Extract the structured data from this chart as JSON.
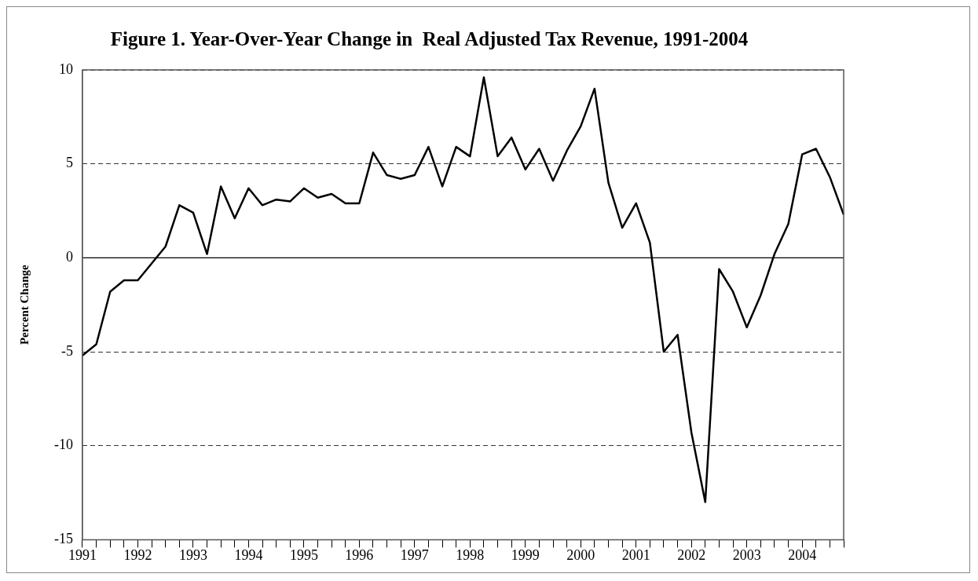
{
  "chart_data": {
    "type": "line",
    "title": "Figure 1. Year-Over-Year Change in  Real Adjusted Tax Revenue, 1991-2004",
    "ylabel": "Percent Change",
    "categories": [
      "1991",
      null,
      null,
      null,
      "1992",
      null,
      null,
      null,
      "1993",
      null,
      null,
      null,
      "1994",
      null,
      null,
      null,
      "1995",
      null,
      null,
      null,
      "1996",
      null,
      null,
      null,
      "1997",
      null,
      null,
      null,
      "1998",
      null,
      null,
      null,
      "1999",
      null,
      null,
      null,
      "2000",
      null,
      null,
      null,
      "2001",
      null,
      null,
      null,
      "2002",
      null,
      null,
      null,
      "2003",
      null,
      null,
      null,
      "2004",
      null,
      null,
      null
    ],
    "series": [
      {
        "color": "#000000",
        "values": [
          -5.2,
          -4.6,
          -1.8,
          -1.2,
          -1.2,
          -0.3,
          0.6,
          2.8,
          2.4,
          0.2,
          3.8,
          2.1,
          3.7,
          2.8,
          3.1,
          3.0,
          3.7,
          3.2,
          3.4,
          2.9,
          2.9,
          5.6,
          4.4,
          4.2,
          4.4,
          5.9,
          3.8,
          5.9,
          5.4,
          9.6,
          5.4,
          6.4,
          4.7,
          5.8,
          4.1,
          5.7,
          7.0,
          9.0,
          4.0,
          1.6,
          2.9,
          0.8,
          -5.0,
          -4.1,
          -9.3,
          -13.0,
          -0.6,
          -1.8,
          -3.7,
          -2.0,
          0.2,
          1.8,
          5.5,
          5.8,
          4.3,
          2.3
        ]
      }
    ],
    "ylim": [
      -15,
      10
    ],
    "yticks": [
      -15,
      -10,
      -5,
      0,
      5,
      10
    ],
    "grid": "y",
    "line_style": "solid",
    "marker": "none",
    "legend": false,
    "ref_lines": [
      {
        "axis": "y",
        "value": 0,
        "color": "#000000",
        "line_style": "solid"
      }
    ]
  }
}
